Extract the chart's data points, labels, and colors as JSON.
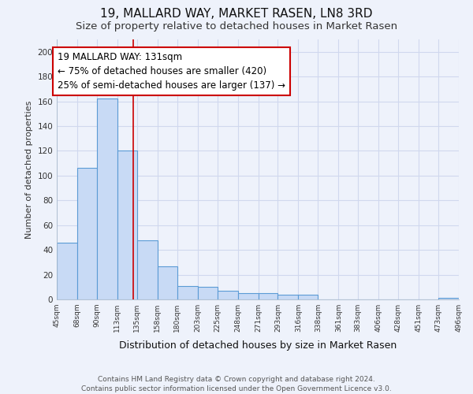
{
  "title": "19, MALLARD WAY, MARKET RASEN, LN8 3RD",
  "subtitle": "Size of property relative to detached houses in Market Rasen",
  "xlabel": "Distribution of detached houses by size in Market Rasen",
  "ylabel": "Number of detached properties",
  "bar_edges": [
    45,
    68,
    90,
    113,
    135,
    158,
    180,
    203,
    225,
    248,
    271,
    293,
    316,
    338,
    361,
    383,
    406,
    428,
    451,
    473,
    496
  ],
  "bar_heights": [
    46,
    106,
    162,
    120,
    48,
    27,
    11,
    10,
    7,
    5,
    5,
    4,
    4,
    0,
    0,
    0,
    0,
    0,
    0,
    1
  ],
  "bar_color": "#c8daf5",
  "bar_edge_color": "#5b9bd5",
  "property_size": 131,
  "vline_color": "#cc0000",
  "annotation_text": "19 MALLARD WAY: 131sqm\n← 75% of detached houses are smaller (420)\n25% of semi-detached houses are larger (137) →",
  "annotation_box_color": "#ffffff",
  "annotation_box_edge": "#cc0000",
  "ylim": [
    0,
    210
  ],
  "yticks": [
    0,
    20,
    40,
    60,
    80,
    100,
    120,
    140,
    160,
    180,
    200
  ],
  "footer": "Contains HM Land Registry data © Crown copyright and database right 2024.\nContains public sector information licensed under the Open Government Licence v3.0.",
  "bg_color": "#eef2fb",
  "grid_color": "#d0d8ee",
  "title_fontsize": 11,
  "subtitle_fontsize": 9.5,
  "annotation_fontsize": 8.5
}
